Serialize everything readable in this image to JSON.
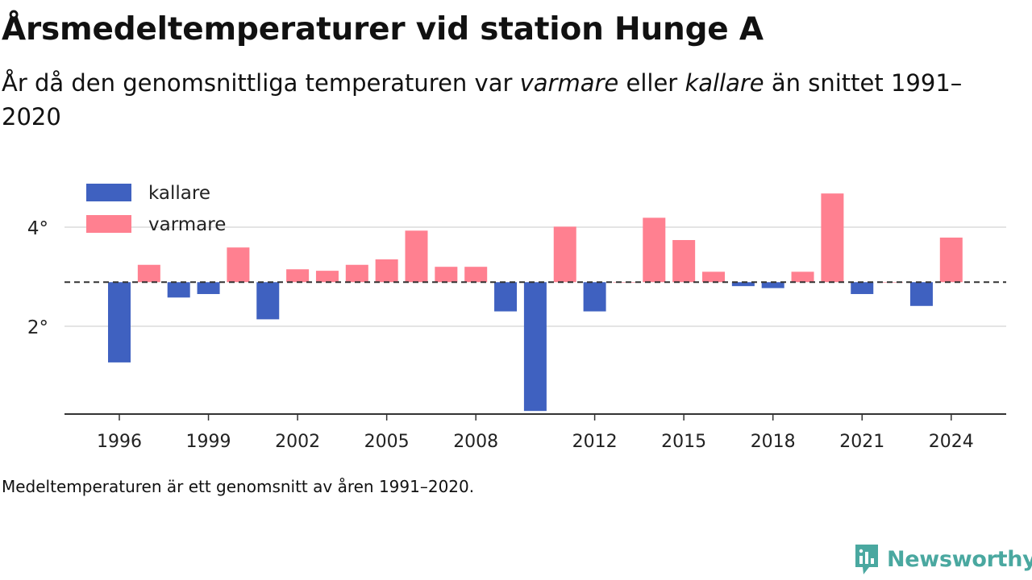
{
  "title": "Årsmedeltemperaturer vid station Hunge A",
  "subtitle": {
    "part1": "År då den genomsnittliga temperaturen var ",
    "warmer": "varmare",
    "part2": " eller ",
    "colder": "kallare",
    "part3": " än snittet 1991–2020"
  },
  "note": "Medeltemperaturen är ett genomsnitt av åren 1991–2020.",
  "brand": {
    "name": "Newsworthy",
    "color": "#4aa8a0"
  },
  "chart_data": {
    "type": "bar",
    "baseline": 2.89,
    "categories": [
      1996,
      1997,
      1998,
      1999,
      2000,
      2001,
      2002,
      2003,
      2004,
      2005,
      2006,
      2007,
      2008,
      2009,
      2010,
      2011,
      2012,
      2013,
      2014,
      2015,
      2016,
      2017,
      2018,
      2019,
      2020,
      2021,
      2022,
      2023,
      2024
    ],
    "values": [
      1.27,
      3.24,
      2.58,
      2.65,
      3.59,
      2.14,
      3.15,
      3.12,
      3.24,
      3.35,
      3.93,
      3.2,
      3.2,
      2.3,
      0.29,
      4.01,
      2.3,
      2.89,
      4.19,
      3.74,
      3.1,
      2.81,
      2.77,
      3.1,
      4.68,
      2.65,
      2.89,
      2.41,
      3.79
    ],
    "ylim": [
      0.2,
      4.8
    ],
    "yticks": [
      2,
      4
    ],
    "ytick_labels": [
      "2°",
      "4°"
    ],
    "xticks": [
      1996,
      1999,
      2002,
      2005,
      2008,
      2012,
      2015,
      2018,
      2021,
      2024
    ],
    "xtick_labels": [
      "1996",
      "1999",
      "2002",
      "2005",
      "2008",
      "2012",
      "2015",
      "2018",
      "2021",
      "2024"
    ],
    "legend": {
      "position": "top-left",
      "items": [
        {
          "label": "kallare",
          "color": "#3f61c0"
        },
        {
          "label": "varmare",
          "color": "#ff8090"
        }
      ]
    },
    "grid": true,
    "xlabel": "",
    "ylabel": ""
  }
}
